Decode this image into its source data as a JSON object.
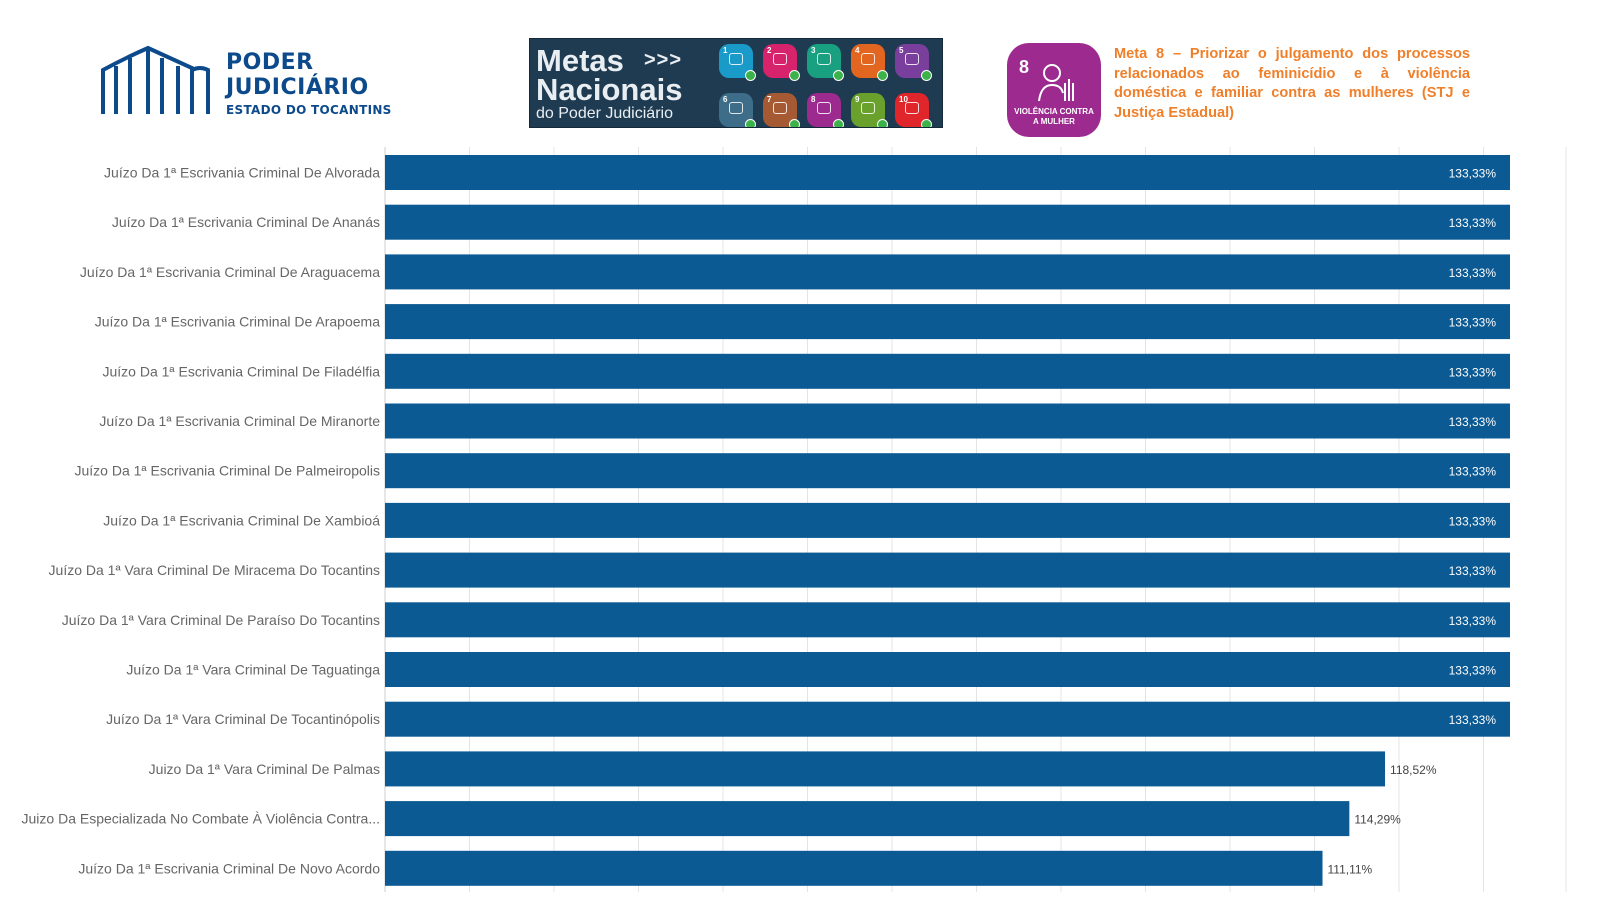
{
  "header": {
    "logo": {
      "line1": "PODER",
      "line2": "JUDICIÁRIO",
      "line3": "ESTADO DO TOCANTINS",
      "color": "#0c4a8c"
    },
    "banner": {
      "title_line1": "Metas",
      "title_line2": "Nacionais",
      "subtitle": "do Poder Judiciário",
      "goals": [
        {
          "num": "1",
          "color": "#1a9ac9"
        },
        {
          "num": "2",
          "color": "#d6236b"
        },
        {
          "num": "3",
          "color": "#18a080"
        },
        {
          "num": "4",
          "color": "#e2661f"
        },
        {
          "num": "5",
          "color": "#7a3f9c"
        },
        {
          "num": "6",
          "color": "#3d6d88"
        },
        {
          "num": "7",
          "color": "#a65a33"
        },
        {
          "num": "8",
          "color": "#9c2a8f"
        },
        {
          "num": "9",
          "color": "#6aa12c"
        },
        {
          "num": "10",
          "color": "#e0262b"
        }
      ]
    },
    "meta8_badge": {
      "number": "8",
      "caption_line1": "VIOLÊNCIA CONTRA",
      "caption_line2": "A MULHER",
      "color": "#9c2a8f"
    },
    "meta8_title": "Meta 8 – Priorizar o julgamento dos processos relacionados ao feminicídio e à violência doméstica e familiar contra as mulheres (STJ e Justiça Estadual)",
    "meta8_title_color": "#f07f2a"
  },
  "chart_data": {
    "type": "bar",
    "orientation": "horizontal",
    "bar_color": "#0b5a93",
    "xlim": [
      0,
      133.33
    ],
    "grid": true,
    "categories": [
      "Juízo Da 1ª Escrivania Criminal De Alvorada",
      "Juízo Da 1ª Escrivania Criminal De Ananás",
      "Juízo Da 1ª Escrivania Criminal De Araguacema",
      "Juízo Da 1ª Escrivania Criminal De Arapoema",
      "Juízo Da 1ª Escrivania Criminal De Filadélfia",
      "Juízo Da 1ª Escrivania Criminal De Miranorte",
      "Juízo Da 1ª Escrivania Criminal De Palmeiropolis",
      "Juízo Da 1ª Escrivania Criminal De Xambioá",
      "Juízo Da 1ª Vara Criminal De Miracema Do Tocantins",
      "Juízo Da 1ª Vara Criminal De Paraíso Do Tocantins",
      "Juízo Da 1ª Vara Criminal De Taguatinga",
      "Juízo Da 1ª Vara Criminal De Tocantinópolis",
      "Juizo Da 1ª Vara Criminal De Palmas",
      "Juizo Da Especializada No Combate À Violência Contra...",
      "Juízo Da 1ª Escrivania Criminal De Novo Acordo"
    ],
    "values": [
      133.33,
      133.33,
      133.33,
      133.33,
      133.33,
      133.33,
      133.33,
      133.33,
      133.33,
      133.33,
      133.33,
      133.33,
      118.52,
      114.29,
      111.11
    ],
    "value_labels": [
      "133,33%",
      "133,33%",
      "133,33%",
      "133,33%",
      "133,33%",
      "133,33%",
      "133,33%",
      "133,33%",
      "133,33%",
      "133,33%",
      "133,33%",
      "133,33%",
      "118,52%",
      "114,29%",
      "111,11%"
    ]
  }
}
